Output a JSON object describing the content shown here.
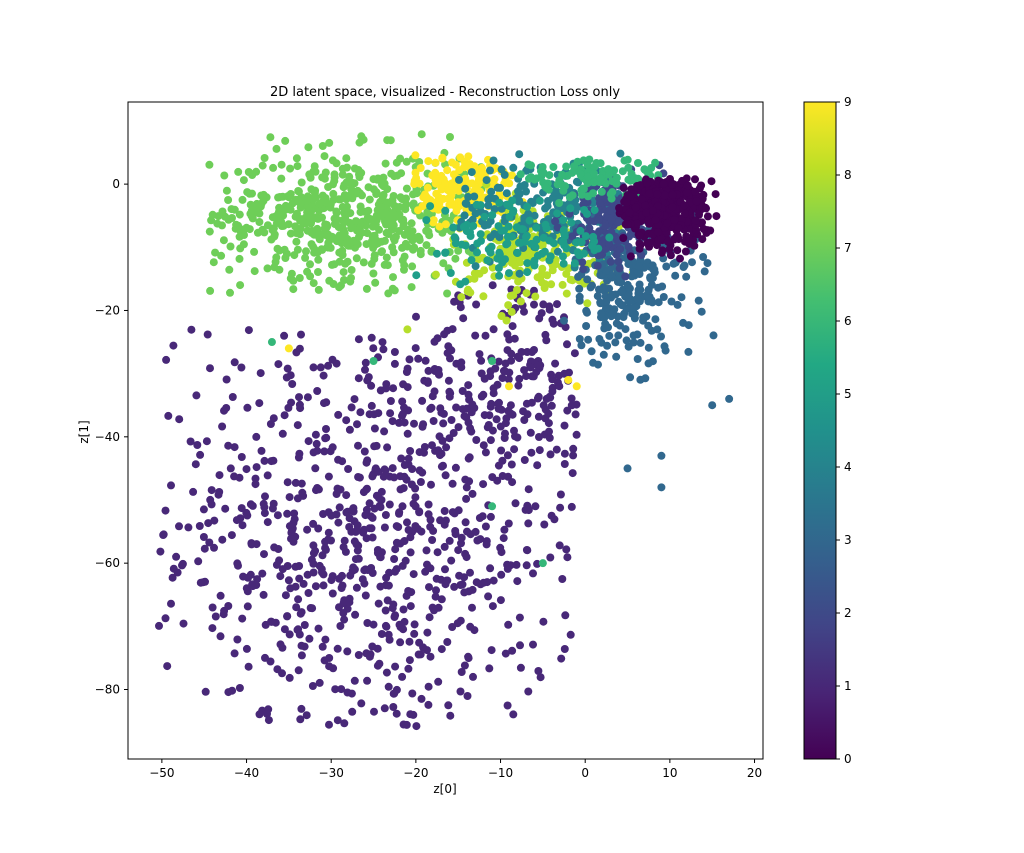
{
  "chart_data": {
    "type": "scatter",
    "title": "2D latent space, visualized - Reconstruction Loss only",
    "xlabel": "z[0]",
    "ylabel": "z[1]",
    "xlim": [
      -54,
      21
    ],
    "ylim": [
      -91,
      13
    ],
    "xticks": [
      -50,
      -40,
      -30,
      -20,
      -10,
      0,
      10,
      20
    ],
    "yticks": [
      0,
      -20,
      -40,
      -60,
      -80
    ],
    "grid": false,
    "colormap": "viridis",
    "colorbar": {
      "range": [
        0,
        9
      ],
      "ticks": [
        0,
        1,
        2,
        3,
        4,
        5,
        6,
        7,
        8,
        9
      ]
    },
    "clusters": [
      {
        "class": 1,
        "count": 820,
        "center": [
          -25,
          -55
        ],
        "spread": [
          13,
          18
        ],
        "xlim": [
          -51,
          -1
        ],
        "ylim": [
          -86,
          -23
        ]
      },
      {
        "class": 1,
        "count": 160,
        "center": [
          -8,
          -30
        ],
        "spread": [
          6,
          8
        ],
        "xlim": [
          -22,
          -1
        ],
        "ylim": [
          -46,
          -16
        ]
      },
      {
        "class": 7,
        "count": 600,
        "center": [
          -28,
          -5
        ],
        "spread": [
          8,
          5
        ],
        "xlim": [
          -45,
          -12
        ],
        "ylim": [
          -18,
          8
        ]
      },
      {
        "class": 9,
        "count": 180,
        "center": [
          -14,
          -1
        ],
        "spread": [
          3,
          3
        ],
        "xlim": [
          -21,
          -7
        ],
        "ylim": [
          -8,
          7
        ]
      },
      {
        "class": 8,
        "count": 200,
        "center": [
          -6,
          -11
        ],
        "spread": [
          5,
          4
        ],
        "xlim": [
          -18,
          6
        ],
        "ylim": [
          -22,
          2
        ]
      },
      {
        "class": 4,
        "count": 220,
        "center": [
          -4,
          -4
        ],
        "spread": [
          6,
          4
        ],
        "xlim": [
          -16,
          8
        ],
        "ylim": [
          -16,
          6
        ]
      },
      {
        "class": 3,
        "count": 260,
        "center": [
          5,
          -16
        ],
        "spread": [
          4,
          6
        ],
        "xlim": [
          -3,
          17
        ],
        "ylim": [
          -49,
          2
        ]
      },
      {
        "class": 2,
        "count": 150,
        "center": [
          3,
          -6
        ],
        "spread": [
          3,
          4
        ],
        "xlim": [
          -5,
          10
        ],
        "ylim": [
          -18,
          3
        ]
      },
      {
        "class": 6,
        "count": 120,
        "center": [
          1,
          1
        ],
        "spread": [
          5,
          1.5
        ],
        "xlim": [
          -8,
          9
        ],
        "ylim": [
          -3,
          4
        ]
      },
      {
        "class": 5,
        "count": 120,
        "center": [
          -8,
          -9
        ],
        "spread": [
          6,
          3
        ],
        "xlim": [
          -20,
          3
        ],
        "ylim": [
          -16,
          -2
        ]
      },
      {
        "class": 0,
        "count": 450,
        "center": [
          9,
          -4
        ],
        "spread": [
          2.8,
          2.8
        ],
        "xlim": [
          4,
          16
        ],
        "ylim": [
          -12,
          1
        ]
      }
    ],
    "outliers": [
      {
        "class": 6,
        "x": -37,
        "y": -25
      },
      {
        "class": 6,
        "x": -25,
        "y": -28
      },
      {
        "class": 6,
        "x": -11,
        "y": -28
      },
      {
        "class": 6,
        "x": -11,
        "y": -51
      },
      {
        "class": 6,
        "x": -5,
        "y": -60
      },
      {
        "class": 9,
        "x": -35,
        "y": -26
      },
      {
        "class": 9,
        "x": -9,
        "y": -32
      },
      {
        "class": 9,
        "x": -2,
        "y": -31
      },
      {
        "class": 9,
        "x": -1,
        "y": -32
      },
      {
        "class": 8,
        "x": -21,
        "y": -23
      },
      {
        "class": 3,
        "x": 5,
        "y": -45
      },
      {
        "class": 3,
        "x": 9,
        "y": -48
      },
      {
        "class": 3,
        "x": 9,
        "y": -43
      },
      {
        "class": 3,
        "x": 15,
        "y": -35
      },
      {
        "class": 3,
        "x": 17,
        "y": -34
      }
    ]
  }
}
